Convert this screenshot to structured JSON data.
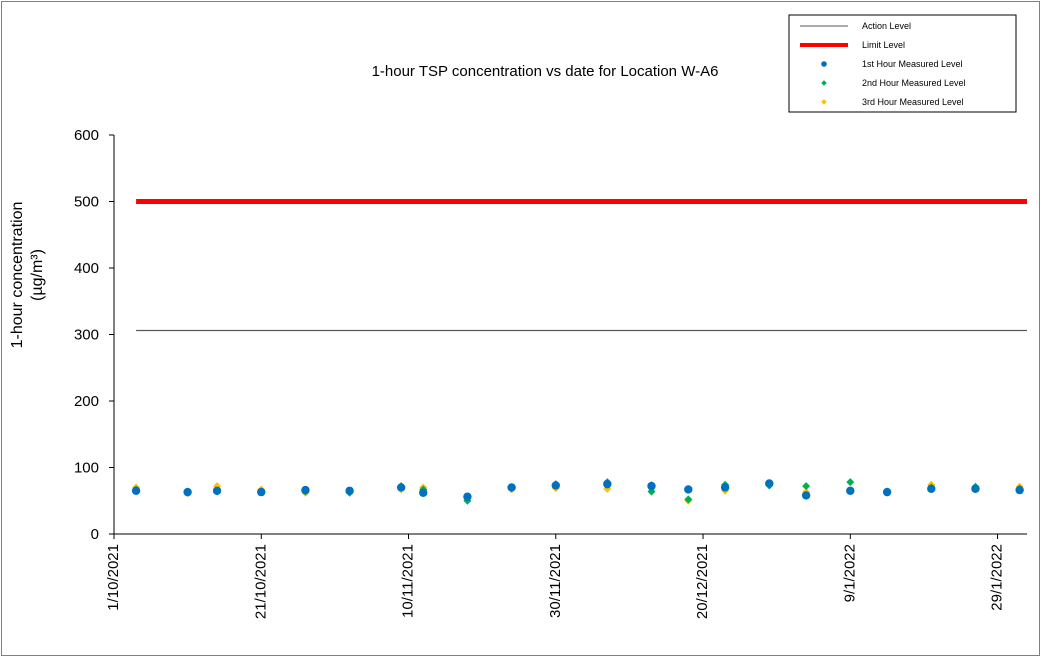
{
  "chart_data": {
    "type": "scatter",
    "title": "1-hour TSP concentration vs date for Location  W-A6",
    "ylabel_line1": "1-hour concentration",
    "ylabel_line2": "(µg/m³)",
    "ylim": [
      0,
      600
    ],
    "yticks": [
      0,
      100,
      200,
      300,
      400,
      500,
      600
    ],
    "xlim": [
      "2021-10-01",
      "2022-02-02"
    ],
    "xticks": [
      {
        "date": "2021-10-01",
        "label": "1/10/2021"
      },
      {
        "date": "2021-10-21",
        "label": "21/10/2021"
      },
      {
        "date": "2021-11-10",
        "label": "10/11/2021"
      },
      {
        "date": "2021-11-30",
        "label": "30/11/2021"
      },
      {
        "date": "2021-12-20",
        "label": "20/12/2021"
      },
      {
        "date": "2022-01-09",
        "label": "9/1/2022"
      },
      {
        "date": "2022-01-29",
        "label": "29/1/2022"
      }
    ],
    "grid": false,
    "legend_position": "top-right",
    "lines": [
      {
        "name": "Action Level",
        "value": 306,
        "color": "#595959",
        "from": "2021-10-04",
        "to": "2022-02-02"
      },
      {
        "name": "Limit Level",
        "value": 500,
        "color": "#ff0000",
        "from": "2021-10-04",
        "to": "2022-02-02"
      }
    ],
    "series": [
      {
        "name": "1st Hour Measured Level",
        "color": "#0070c0",
        "marker": "circle",
        "points": [
          [
            "2021-10-04",
            65
          ],
          [
            "2021-10-11",
            63
          ],
          [
            "2021-10-15",
            65
          ],
          [
            "2021-10-21",
            63
          ],
          [
            "2021-10-27",
            66
          ],
          [
            "2021-11-02",
            65
          ],
          [
            "2021-11-09",
            70
          ],
          [
            "2021-11-12",
            62
          ],
          [
            "2021-11-18",
            56
          ],
          [
            "2021-11-24",
            70
          ],
          [
            "2021-11-30",
            73
          ],
          [
            "2021-12-07",
            75
          ],
          [
            "2021-12-13",
            72
          ],
          [
            "2021-12-18",
            67
          ],
          [
            "2021-12-23",
            70
          ],
          [
            "2021-12-29",
            76
          ],
          [
            "2022-01-03",
            58
          ],
          [
            "2022-01-09",
            65
          ],
          [
            "2022-01-14",
            63
          ],
          [
            "2022-01-20",
            68
          ],
          [
            "2022-01-26",
            68
          ],
          [
            "2022-02-01",
            66
          ]
        ]
      },
      {
        "name": "2nd Hour Measured Level",
        "color": "#00b050",
        "marker": "diamond",
        "points": [
          [
            "2021-10-04",
            67
          ],
          [
            "2021-10-11",
            64
          ],
          [
            "2021-10-15",
            64
          ],
          [
            "2021-10-21",
            64
          ],
          [
            "2021-10-27",
            64
          ],
          [
            "2021-11-02",
            62
          ],
          [
            "2021-11-09",
            72
          ],
          [
            "2021-11-12",
            67
          ],
          [
            "2021-11-18",
            50
          ],
          [
            "2021-11-24",
            69
          ],
          [
            "2021-11-30",
            75
          ],
          [
            "2021-12-07",
            78
          ],
          [
            "2021-12-13",
            64
          ],
          [
            "2021-12-18",
            52
          ],
          [
            "2021-12-23",
            74
          ],
          [
            "2021-12-29",
            73
          ],
          [
            "2022-01-03",
            72
          ],
          [
            "2022-01-09",
            78
          ],
          [
            "2022-01-14",
            64
          ],
          [
            "2022-01-20",
            70
          ],
          [
            "2022-01-26",
            71
          ],
          [
            "2022-02-01",
            68
          ]
        ]
      },
      {
        "name": "3rd Hour Measured Level",
        "color": "#ffc000",
        "marker": "diamond",
        "points": [
          [
            "2021-10-04",
            70
          ],
          [
            "2021-10-11",
            61
          ],
          [
            "2021-10-15",
            72
          ],
          [
            "2021-10-21",
            67
          ],
          [
            "2021-10-27",
            62
          ],
          [
            "2021-11-02",
            63
          ],
          [
            "2021-11-09",
            67
          ],
          [
            "2021-11-12",
            70
          ],
          [
            "2021-11-18",
            54
          ],
          [
            "2021-11-24",
            67
          ],
          [
            "2021-11-30",
            69
          ],
          [
            "2021-12-07",
            68
          ],
          [
            "2021-12-13",
            74
          ],
          [
            "2021-12-18",
            50
          ],
          [
            "2021-12-23",
            65
          ],
          [
            "2021-12-29",
            75
          ],
          [
            "2022-01-03",
            63
          ],
          [
            "2022-01-09",
            66
          ],
          [
            "2022-01-14",
            62
          ],
          [
            "2022-01-20",
            74
          ],
          [
            "2022-01-26",
            67
          ],
          [
            "2022-02-01",
            71
          ]
        ]
      }
    ]
  }
}
